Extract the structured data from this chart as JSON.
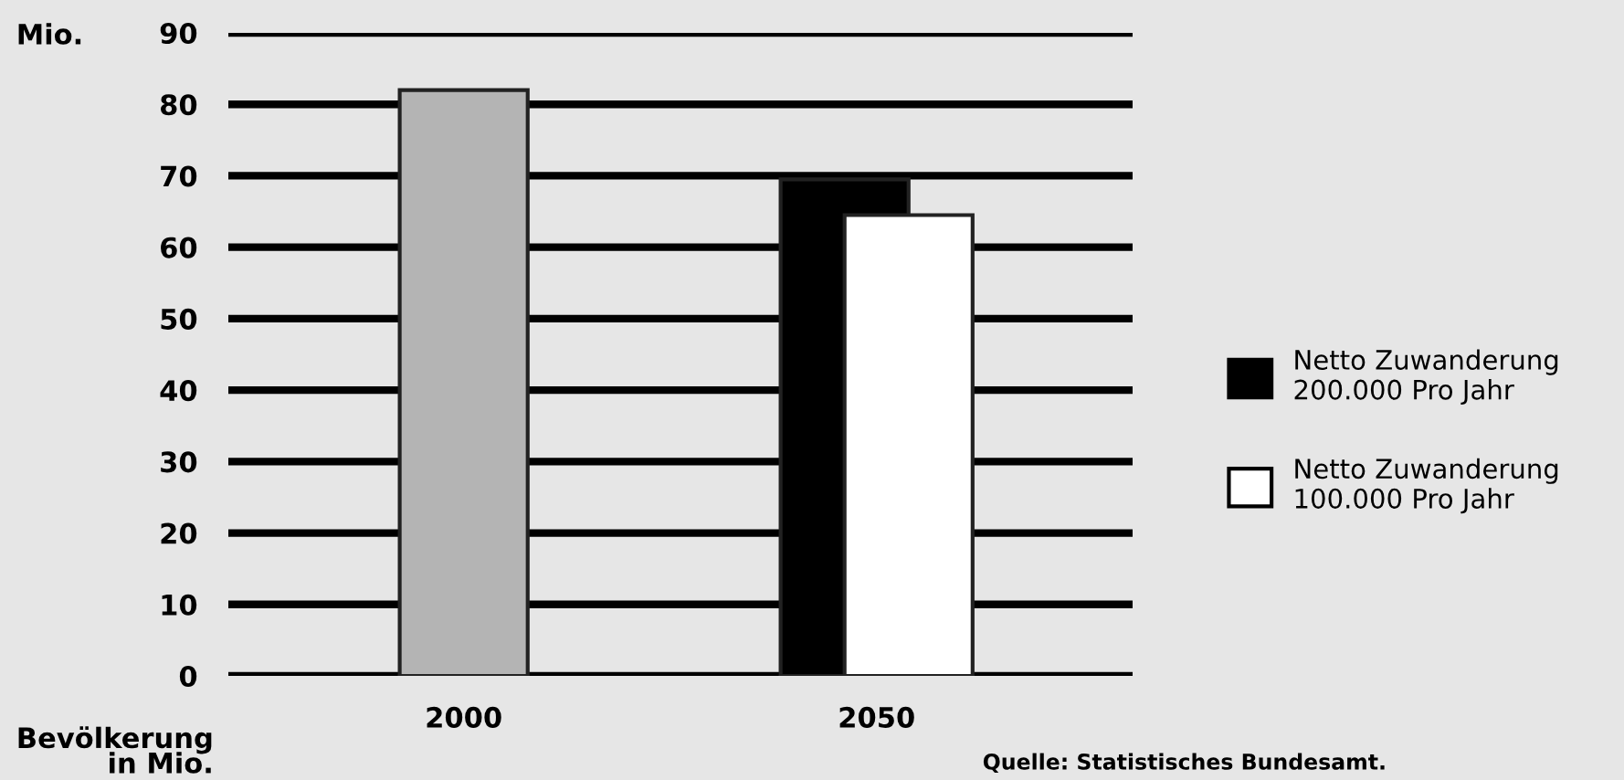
{
  "chart_data": {
    "type": "bar",
    "ylabel": "Mio.",
    "categories": [
      "2000",
      "2050"
    ],
    "series": [
      {
        "color": "#b4b4b4",
        "values": [
          82,
          null
        ]
      },
      {
        "name": "Netto Zuwanderung\n200.000 Pro Jahr",
        "color": "#000000",
        "values": [
          null,
          69.5
        ]
      },
      {
        "name": "Netto Zuwanderung\n100.000 Pro Jahr",
        "color": "#ffffff",
        "values": [
          null,
          64.5
        ]
      }
    ],
    "ylim": [
      0,
      90
    ],
    "yticks": [
      0,
      10,
      20,
      30,
      40,
      50,
      60,
      70,
      80,
      90
    ],
    "grid": "y",
    "legend": "right",
    "annotations": [
      "Bevölkerung\nin Mio.",
      "Quelle: Statistisches Bundesamt."
    ]
  }
}
